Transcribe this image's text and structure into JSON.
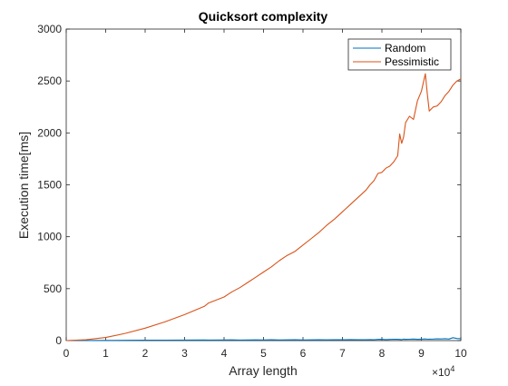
{
  "chart_data": {
    "type": "line",
    "title": "Quicksort complexity",
    "xlabel": "Array length",
    "ylabel": "Execution time[ms]",
    "x_exponent_label": "×10",
    "x_exponent_power": "4",
    "xlim": [
      0,
      100000
    ],
    "ylim": [
      0,
      3000
    ],
    "x_ticks": [
      0,
      10000,
      20000,
      30000,
      40000,
      50000,
      60000,
      70000,
      80000,
      90000,
      100000
    ],
    "x_tick_labels": [
      "0",
      "1",
      "2",
      "3",
      "4",
      "5",
      "6",
      "7",
      "8",
      "9",
      "10"
    ],
    "y_ticks": [
      0,
      500,
      1000,
      1500,
      2000,
      2500,
      3000
    ],
    "y_tick_labels": [
      "0",
      "500",
      "1000",
      "1500",
      "2000",
      "2500",
      "3000"
    ],
    "grid": false,
    "legend_position": "top-right",
    "x": [
      0,
      5000,
      10000,
      15000,
      20000,
      25000,
      30000,
      35000,
      36000,
      40000,
      42000,
      44000,
      46000,
      48000,
      50000,
      52000,
      54000,
      56000,
      58000,
      60000,
      62000,
      64000,
      66000,
      68000,
      70000,
      72000,
      74000,
      76000,
      77000,
      78000,
      79000,
      80000,
      81000,
      82000,
      83000,
      84000,
      84500,
      85000,
      85500,
      86000,
      87000,
      88000,
      89000,
      90000,
      91000,
      91500,
      92000,
      93000,
      94000,
      95000,
      96000,
      97000,
      98000,
      99000,
      100000
    ],
    "series": [
      {
        "name": "Random",
        "color": "#0072BD",
        "values": [
          0,
          1,
          2,
          3,
          4,
          4,
          5,
          6,
          5,
          6,
          7,
          5,
          6,
          7,
          6,
          8,
          6,
          7,
          8,
          6,
          7,
          8,
          7,
          9,
          8,
          10,
          9,
          8,
          10,
          9,
          11,
          12,
          10,
          11,
          13,
          12,
          11,
          10,
          14,
          12,
          13,
          15,
          12,
          14,
          16,
          13,
          14,
          15,
          17,
          16,
          18,
          15,
          28,
          20,
          18
        ]
      },
      {
        "name": "Pessimistic",
        "color": "#D95319",
        "values": [
          0,
          8,
          30,
          70,
          120,
          180,
          250,
          330,
          360,
          420,
          470,
          510,
          560,
          610,
          660,
          710,
          770,
          820,
          860,
          920,
          980,
          1040,
          1110,
          1170,
          1240,
          1310,
          1380,
          1450,
          1500,
          1540,
          1610,
          1620,
          1660,
          1680,
          1720,
          1780,
          1990,
          1900,
          1960,
          2100,
          2160,
          2130,
          2310,
          2400,
          2570,
          2380,
          2210,
          2250,
          2260,
          2300,
          2360,
          2400,
          2460,
          2500,
          2520
        ]
      }
    ]
  }
}
